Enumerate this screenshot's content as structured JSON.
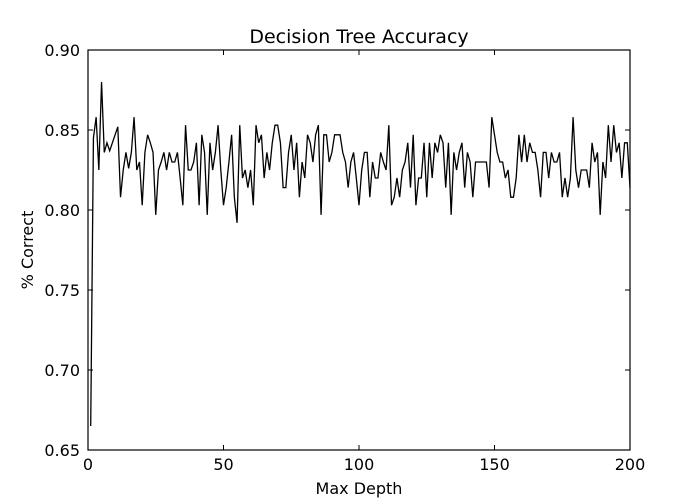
{
  "chart_data": {
    "type": "line",
    "title": "Decision Tree Accuracy",
    "xlabel": "Max Depth",
    "ylabel": "% Correct",
    "xlim": [
      0,
      200
    ],
    "ylim": [
      0.65,
      0.9
    ],
    "x_ticks": [
      "0",
      "50",
      "100",
      "150",
      "200"
    ],
    "y_ticks": [
      "0.65",
      "0.70",
      "0.75",
      "0.80",
      "0.85",
      "0.90"
    ],
    "grid": false,
    "legend": "none",
    "series": [
      {
        "color": "#000000",
        "x": [
          1,
          2,
          3,
          4,
          5,
          6,
          7,
          8,
          9,
          10,
          11,
          12,
          13,
          14,
          15,
          16,
          17,
          18,
          19,
          20,
          21,
          22,
          23,
          24,
          25,
          26,
          27,
          28,
          29,
          30,
          31,
          32,
          33,
          34,
          35,
          36,
          37,
          38,
          39,
          40,
          41,
          42,
          43,
          44,
          45,
          46,
          47,
          48,
          49,
          50,
          51,
          52,
          53,
          54,
          55,
          56,
          57,
          58,
          59,
          60,
          61,
          62,
          63,
          64,
          65,
          66,
          67,
          68,
          69,
          70,
          71,
          72,
          73,
          74,
          75,
          76,
          77,
          78,
          79,
          80,
          81,
          82,
          83,
          84,
          85,
          86,
          87,
          88,
          89,
          90,
          91,
          92,
          93,
          94,
          95,
          96,
          97,
          98,
          99,
          100,
          101,
          102,
          103,
          104,
          105,
          106,
          107,
          108,
          109,
          110,
          111,
          112,
          113,
          114,
          115,
          116,
          117,
          118,
          119,
          120,
          121,
          122,
          123,
          124,
          125,
          126,
          127,
          128,
          129,
          130,
          131,
          132,
          133,
          134,
          135,
          136,
          137,
          138,
          139,
          140,
          141,
          142,
          143,
          144,
          145,
          146,
          147,
          148,
          149,
          150,
          151,
          152,
          153,
          154,
          155,
          156,
          157,
          158,
          159,
          160,
          161,
          162,
          163,
          164,
          165,
          166,
          167,
          168,
          169,
          170,
          171,
          172,
          173,
          174,
          175,
          176,
          177,
          178,
          179,
          180,
          181,
          182,
          183,
          184,
          185,
          186,
          187,
          188,
          189,
          190,
          191,
          192,
          193,
          194,
          195,
          196,
          197,
          198,
          199,
          200
        ],
        "values": [
          0.665,
          0.845,
          0.858,
          0.825,
          0.88,
          0.836,
          0.842,
          0.837,
          0.842,
          0.847,
          0.852,
          0.808,
          0.825,
          0.836,
          0.826,
          0.836,
          0.858,
          0.825,
          0.83,
          0.803,
          0.836,
          0.847,
          0.842,
          0.836,
          0.797,
          0.825,
          0.83,
          0.836,
          0.825,
          0.836,
          0.83,
          0.83,
          0.836,
          0.82,
          0.803,
          0.853,
          0.825,
          0.825,
          0.83,
          0.842,
          0.803,
          0.847,
          0.836,
          0.797,
          0.842,
          0.825,
          0.836,
          0.853,
          0.825,
          0.803,
          0.814,
          0.83,
          0.847,
          0.808,
          0.792,
          0.853,
          0.82,
          0.825,
          0.814,
          0.825,
          0.803,
          0.853,
          0.842,
          0.847,
          0.82,
          0.836,
          0.825,
          0.842,
          0.853,
          0.853,
          0.842,
          0.814,
          0.814,
          0.836,
          0.847,
          0.825,
          0.842,
          0.808,
          0.83,
          0.82,
          0.847,
          0.842,
          0.83,
          0.847,
          0.853,
          0.797,
          0.847,
          0.847,
          0.83,
          0.836,
          0.847,
          0.847,
          0.847,
          0.836,
          0.83,
          0.814,
          0.83,
          0.836,
          0.82,
          0.803,
          0.825,
          0.836,
          0.836,
          0.808,
          0.83,
          0.82,
          0.82,
          0.836,
          0.83,
          0.825,
          0.853,
          0.803,
          0.808,
          0.82,
          0.808,
          0.825,
          0.83,
          0.842,
          0.814,
          0.847,
          0.803,
          0.82,
          0.82,
          0.842,
          0.808,
          0.842,
          0.82,
          0.842,
          0.836,
          0.847,
          0.842,
          0.814,
          0.842,
          0.797,
          0.836,
          0.825,
          0.836,
          0.842,
          0.814,
          0.836,
          0.83,
          0.808,
          0.83,
          0.83,
          0.83,
          0.83,
          0.83,
          0.814,
          0.858,
          0.847,
          0.836,
          0.83,
          0.83,
          0.82,
          0.825,
          0.808,
          0.808,
          0.82,
          0.847,
          0.83,
          0.847,
          0.83,
          0.842,
          0.836,
          0.836,
          0.825,
          0.808,
          0.836,
          0.836,
          0.82,
          0.836,
          0.83,
          0.83,
          0.836,
          0.808,
          0.82,
          0.808,
          0.82,
          0.858,
          0.825,
          0.814,
          0.825,
          0.825,
          0.825,
          0.814,
          0.842,
          0.83,
          0.836,
          0.797,
          0.83,
          0.82,
          0.853,
          0.83,
          0.853,
          0.836,
          0.842,
          0.82,
          0.842,
          0.842,
          0.814
        ]
      }
    ]
  }
}
